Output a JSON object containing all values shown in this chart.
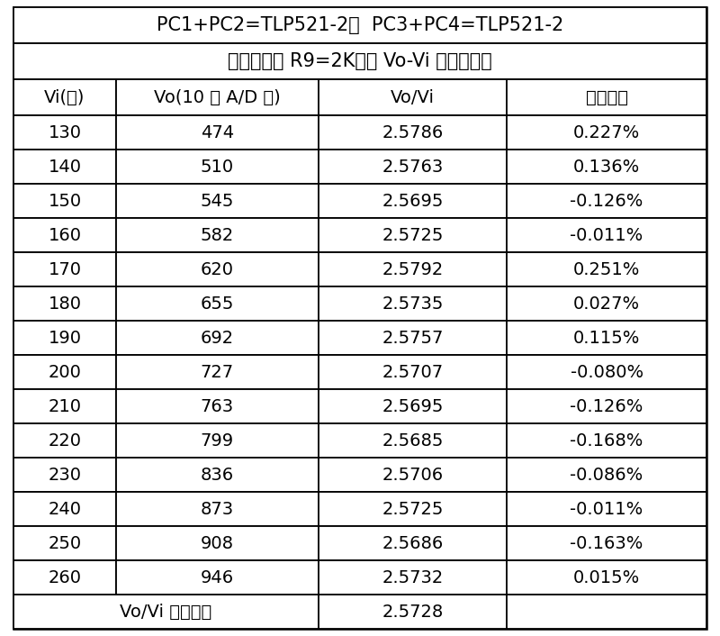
{
  "title1": "PC1+PC2=TLP521-2，  PC3+PC4=TLP521-2",
  "title2": "调节电位器 R9=2K，使 Vo-Vi 呼线性关系",
  "headers": [
    "Vi(伏)",
    "Vo(10 位 A/D 値)",
    "Vo/Vi",
    "绝对误差"
  ],
  "rows": [
    [
      "130",
      "474",
      "2.5786",
      "0.227%"
    ],
    [
      "140",
      "510",
      "2.5763",
      "0.136%"
    ],
    [
      "150",
      "545",
      "2.5695",
      "-0.126%"
    ],
    [
      "160",
      "582",
      "2.5725",
      "-0.011%"
    ],
    [
      "170",
      "620",
      "2.5792",
      "0.251%"
    ],
    [
      "180",
      "655",
      "2.5735",
      "0.027%"
    ],
    [
      "190",
      "692",
      "2.5757",
      "0.115%"
    ],
    [
      "200",
      "727",
      "2.5707",
      "-0.080%"
    ],
    [
      "210",
      "763",
      "2.5695",
      "-0.126%"
    ],
    [
      "220",
      "799",
      "2.5685",
      "-0.168%"
    ],
    [
      "230",
      "836",
      "2.5706",
      "-0.086%"
    ],
    [
      "240",
      "873",
      "2.5725",
      "-0.011%"
    ],
    [
      "250",
      "908",
      "2.5686",
      "-0.163%"
    ],
    [
      "260",
      "946",
      "2.5732",
      "0.015%"
    ]
  ],
  "footer_label": "Vo/Vi 的平均値",
  "footer_value": "2.5728",
  "bg_color": "#ffffff",
  "text_color": "#000000",
  "font_size": 14,
  "title_font_size": 15
}
